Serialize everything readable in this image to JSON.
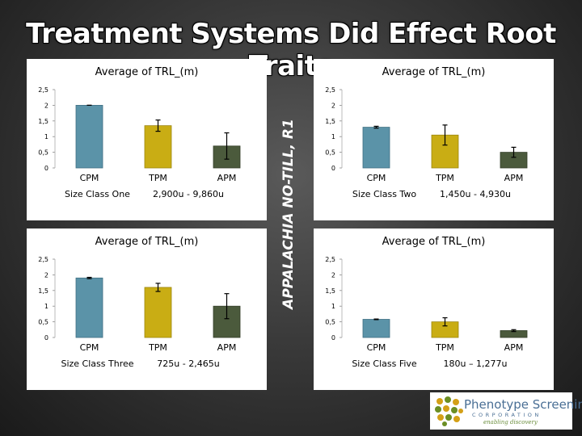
{
  "slide": {
    "title": "Treatment Systems Did Effect Root Traits",
    "side_label": "APPALACHIA NO-TILL, R1",
    "colors": {
      "CPM": "#5b93a8",
      "TPM": "#c9ad14",
      "APM": "#4b5a3c"
    }
  },
  "logo": {
    "name": "Phenotype Screening",
    "corporation": "CORPORATION",
    "tagline": "enabling discovery",
    "icon": "dot-cluster-logo-icon"
  },
  "chart_data": [
    {
      "type": "bar",
      "title": "Average of TRL_(m)",
      "categories": [
        "CPM",
        "TPM",
        "APM"
      ],
      "values": [
        2.0,
        1.35,
        0.7
      ],
      "error": [
        0.0,
        0.18,
        0.42
      ],
      "ylim": [
        0,
        2.5
      ],
      "yticks": [
        "0",
        "0,5",
        "1",
        "1,5",
        "2",
        "2,5"
      ],
      "caption_left": "Size Class One",
      "caption_right": "2,900u - 9,860u"
    },
    {
      "type": "bar",
      "title": "Average of TRL_(m)",
      "categories": [
        "CPM",
        "TPM",
        "APM"
      ],
      "values": [
        1.3,
        1.05,
        0.5
      ],
      "error": [
        0.03,
        0.32,
        0.16
      ],
      "ylim": [
        0,
        2.5
      ],
      "yticks": [
        "0",
        "0,5",
        "1",
        "1,5",
        "2",
        "2,5"
      ],
      "caption_left": "Size Class Two",
      "caption_right": "1,450u - 4,930u"
    },
    {
      "type": "bar",
      "title": "Average of TRL_(m)",
      "categories": [
        "CPM",
        "TPM",
        "APM"
      ],
      "values": [
        1.9,
        1.6,
        1.0
      ],
      "error": [
        0.02,
        0.13,
        0.4
      ],
      "ylim": [
        0,
        2.5
      ],
      "yticks": [
        "0",
        "0,5",
        "1",
        "1,5",
        "2",
        "2,5"
      ],
      "caption_left": "Size Class Three",
      "caption_right": "725u - 2,465u"
    },
    {
      "type": "bar",
      "title": "Average of TRL_(m)",
      "categories": [
        "CPM",
        "TPM",
        "APM"
      ],
      "values": [
        0.58,
        0.5,
        0.22
      ],
      "error": [
        0.01,
        0.13,
        0.03
      ],
      "ylim": [
        0,
        2.5
      ],
      "yticks": [
        "0",
        "0,5",
        "1",
        "1,5",
        "2",
        "2,5"
      ],
      "caption_left": "Size Class Five",
      "caption_right": "180u – 1,277u"
    }
  ]
}
